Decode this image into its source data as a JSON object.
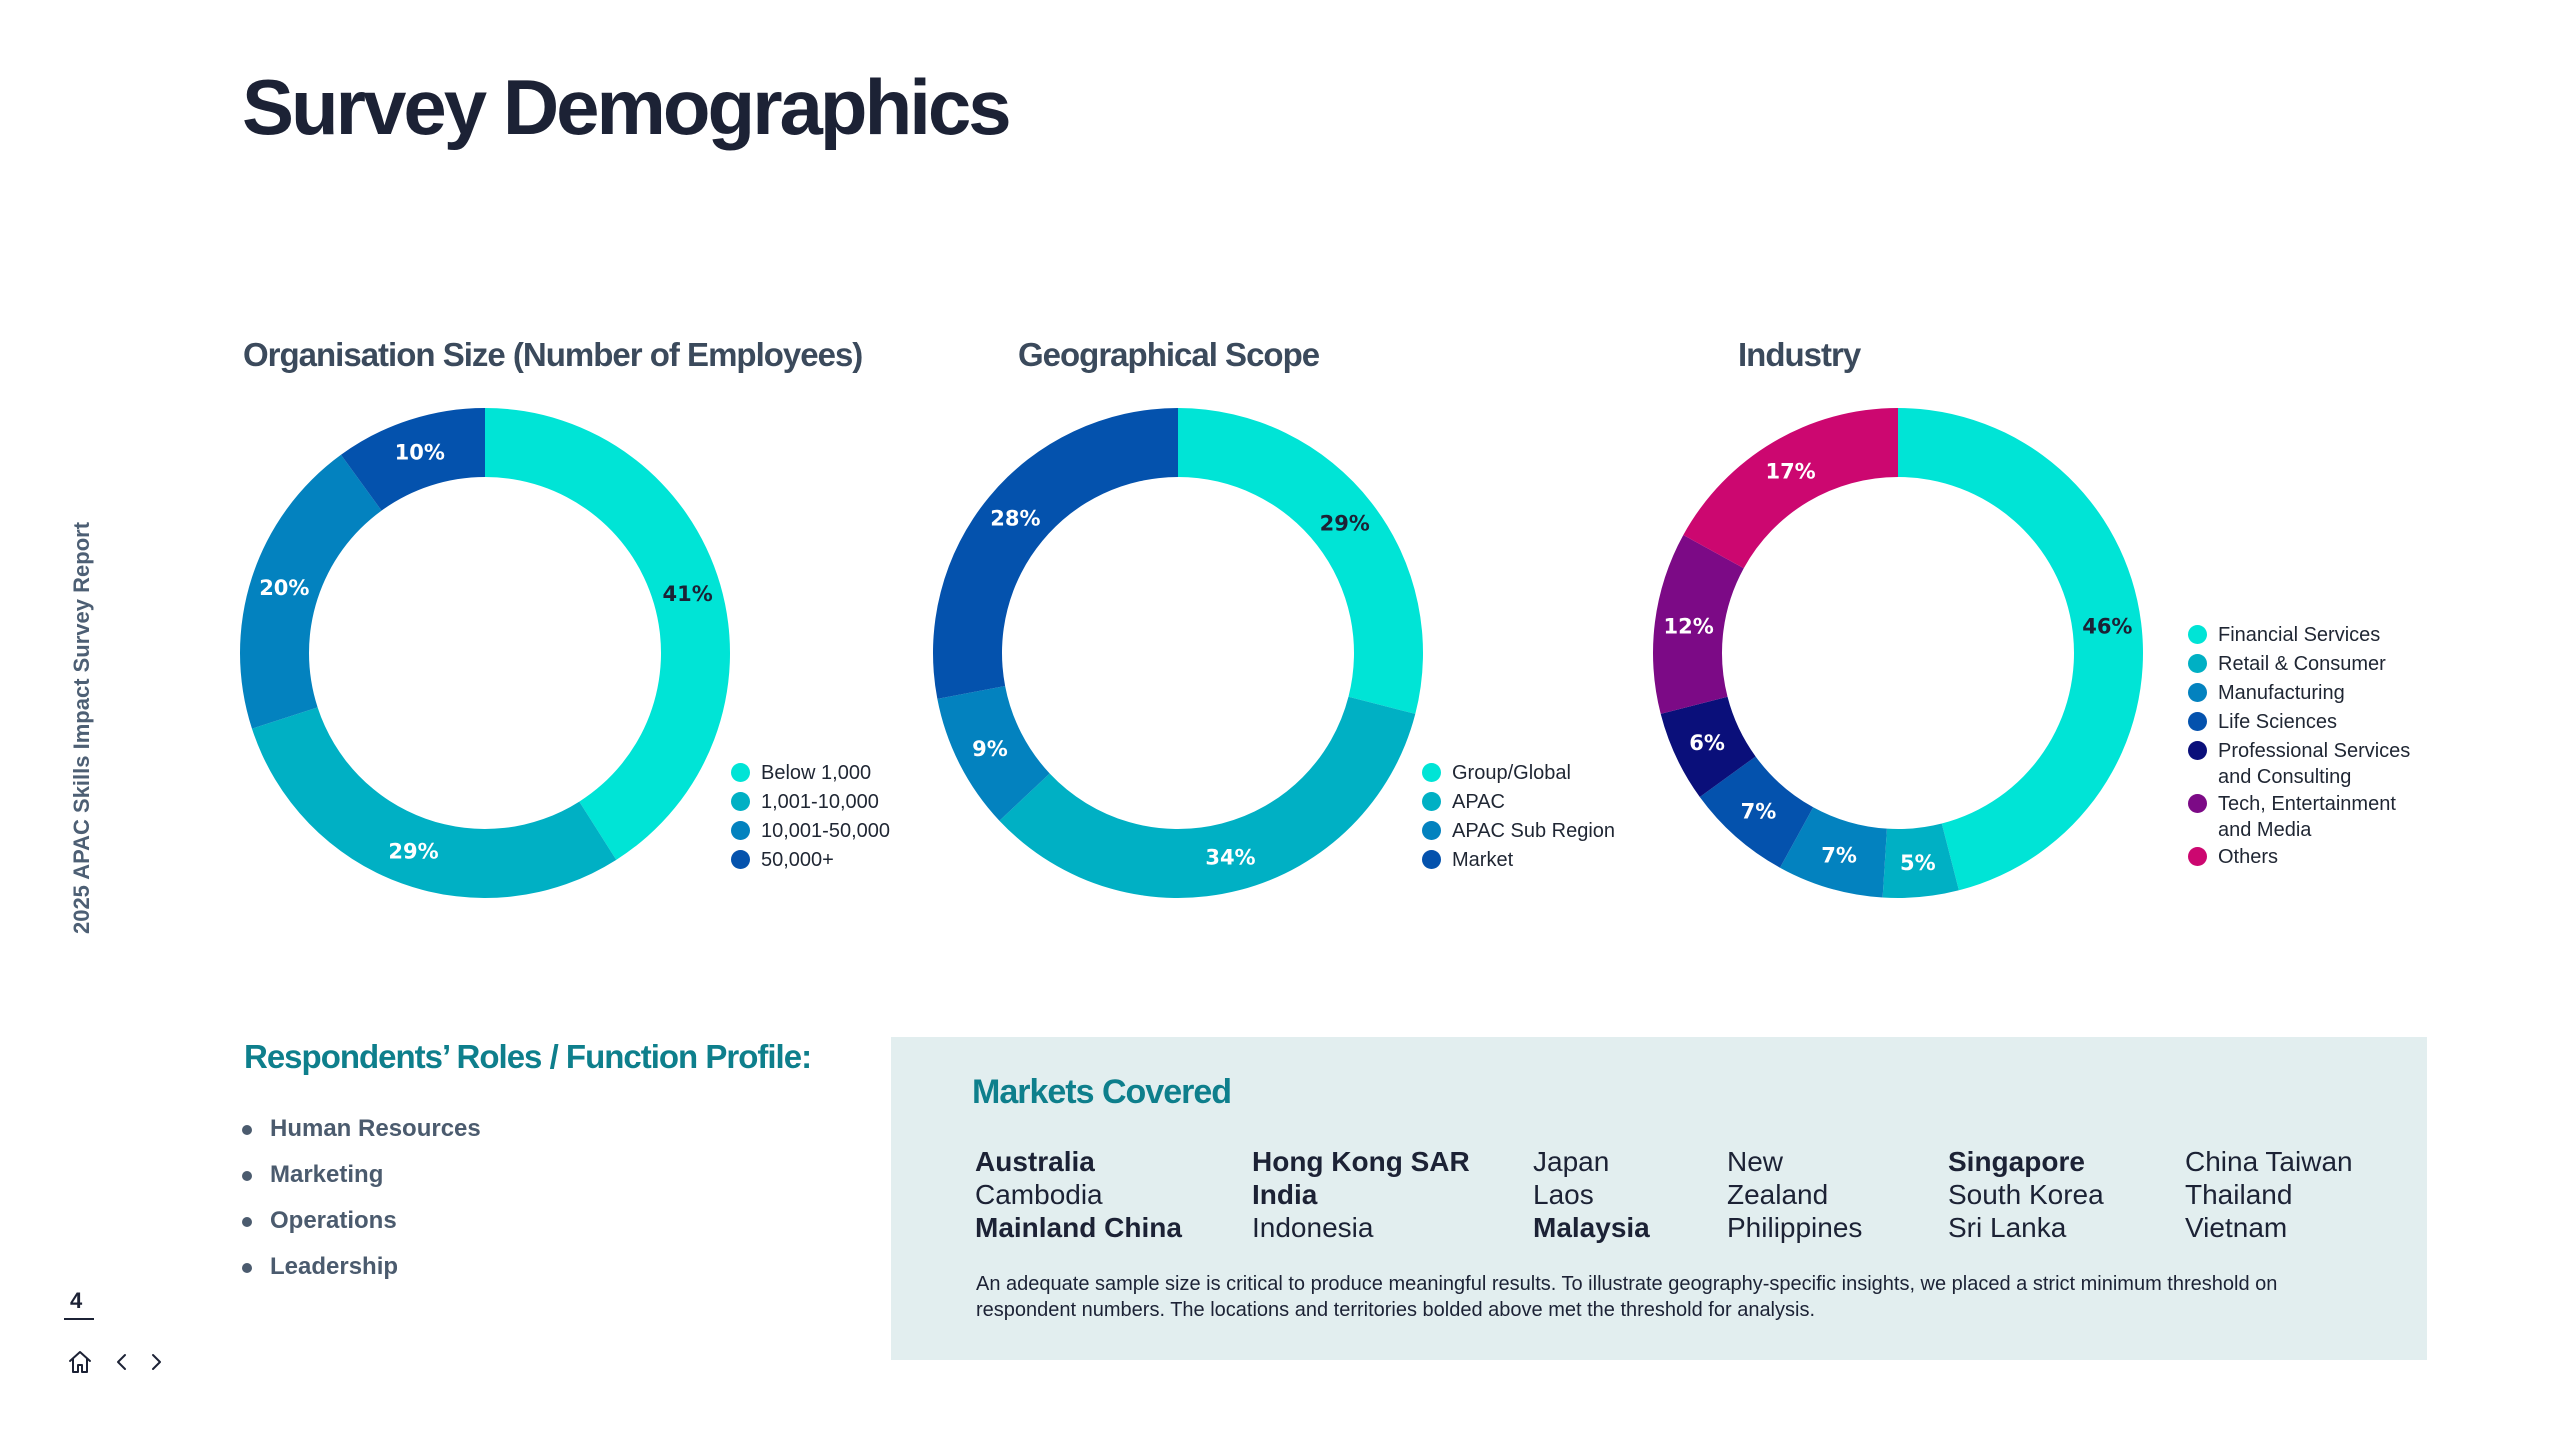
{
  "page": {
    "title": "Survey Demographics",
    "side_label": "2025 APAC Skills Impact Survey Report",
    "page_number": "4"
  },
  "colors": {
    "c1": "#00e4d6",
    "c2": "#00b0c4",
    "c3": "#0382bf",
    "c4": "#0452ad",
    "c5": "#0a0f7a",
    "c6": "#7c0a86",
    "c7": "#cc0770"
  },
  "chart_data": [
    {
      "type": "pie",
      "title": "Organisation Size (Number of Employees)",
      "categories": [
        "Below 1,000",
        "1,001-10,000",
        "10,001-50,000",
        "50,000+"
      ],
      "values": [
        41,
        29,
        20,
        10
      ],
      "labels": [
        "41%",
        "29%",
        "20%",
        "10%"
      ],
      "colors": [
        "#00e4d6",
        "#00b0c4",
        "#0382bf",
        "#0452ad"
      ],
      "label_colors": [
        "#1c2235",
        "#ffffff",
        "#ffffff",
        "#ffffff"
      ],
      "legend": "bottom-right"
    },
    {
      "type": "pie",
      "title": "Geographical Scope",
      "categories": [
        "Group/Global",
        "APAC",
        "APAC Sub Region",
        "Market"
      ],
      "values": [
        29,
        34,
        9,
        28
      ],
      "labels": [
        "29%",
        "34%",
        "9%",
        "28%"
      ],
      "colors": [
        "#00e4d6",
        "#00b0c4",
        "#0382bf",
        "#0452ad"
      ],
      "label_colors": [
        "#1c2235",
        "#ffffff",
        "#ffffff",
        "#ffffff"
      ],
      "legend": "bottom-right"
    },
    {
      "type": "pie",
      "title": "Industry",
      "categories": [
        "Financial Services",
        "Retail & Consumer",
        "Manufacturing",
        "Life Sciences",
        "Professional Services and Consulting",
        "Tech, Entertainment and Media",
        "Others"
      ],
      "values": [
        46,
        5,
        7,
        7,
        6,
        12,
        17
      ],
      "labels": [
        "46%",
        "5%",
        "7%",
        "7%",
        "6%",
        "12%",
        "17%"
      ],
      "colors": [
        "#00e4d6",
        "#00b0c4",
        "#0382bf",
        "#0452ad",
        "#0a0f7a",
        "#7c0a86",
        "#cc0770"
      ],
      "label_colors": [
        "#1c2235",
        "#ffffff",
        "#ffffff",
        "#ffffff",
        "#ffffff",
        "#ffffff",
        "#ffffff"
      ],
      "legend": "right"
    }
  ],
  "legends": {
    "org": [
      "Below 1,000",
      "1,001-10,000",
      "10,001-50,000",
      "50,000+"
    ],
    "geo": [
      "Group/Global",
      "APAC",
      "APAC Sub Region",
      "Market"
    ],
    "industry": [
      {
        "line1": "Financial Services",
        "line2": ""
      },
      {
        "line1": "Retail & Consumer",
        "line2": ""
      },
      {
        "line1": "Manufacturing",
        "line2": ""
      },
      {
        "line1": "Life Sciences",
        "line2": ""
      },
      {
        "line1": "Professional Services",
        "line2": "and Consulting"
      },
      {
        "line1": "Tech, Entertainment",
        "line2": "and Media"
      },
      {
        "line1": "Others",
        "line2": ""
      }
    ]
  },
  "roles": {
    "title": "Respondents’ Roles / Function Profile:",
    "items": [
      "Human Resources",
      "Marketing",
      "Operations",
      "Leadership"
    ]
  },
  "markets": {
    "title": "Markets Covered",
    "columns": [
      [
        {
          "name": "Australia",
          "bold": true
        },
        {
          "name": "Cambodia",
          "bold": false
        },
        {
          "name": "Mainland China",
          "bold": true
        }
      ],
      [
        {
          "name": "Hong Kong SAR",
          "bold": true
        },
        {
          "name": "India",
          "bold": true
        },
        {
          "name": "Indonesia",
          "bold": false
        }
      ],
      [
        {
          "name": "Japan",
          "bold": false
        },
        {
          "name": "Laos",
          "bold": false
        },
        {
          "name": "Malaysia",
          "bold": true
        }
      ],
      [
        {
          "name": "New",
          "bold": false
        },
        {
          "name": "Zealand",
          "bold": false
        },
        {
          "name": "Philippines",
          "bold": false
        }
      ],
      [
        {
          "name": "Singapore",
          "bold": true
        },
        {
          "name": "South Korea",
          "bold": false
        },
        {
          "name": "Sri Lanka",
          "bold": false
        }
      ],
      [
        {
          "name": "China Taiwan",
          "bold": false
        },
        {
          "name": "Thailand",
          "bold": false
        },
        {
          "name": "Vietnam",
          "bold": false
        }
      ]
    ],
    "note": "An adequate sample size is critical to produce meaningful results. To illustrate geography-specific insights, we placed a strict minimum threshold on respondent numbers. The locations and territories bolded above met the threshold for analysis."
  },
  "nav": {
    "home_icon": "home-icon",
    "prev_icon": "chevron-left-icon",
    "next_icon": "chevron-right-icon"
  }
}
